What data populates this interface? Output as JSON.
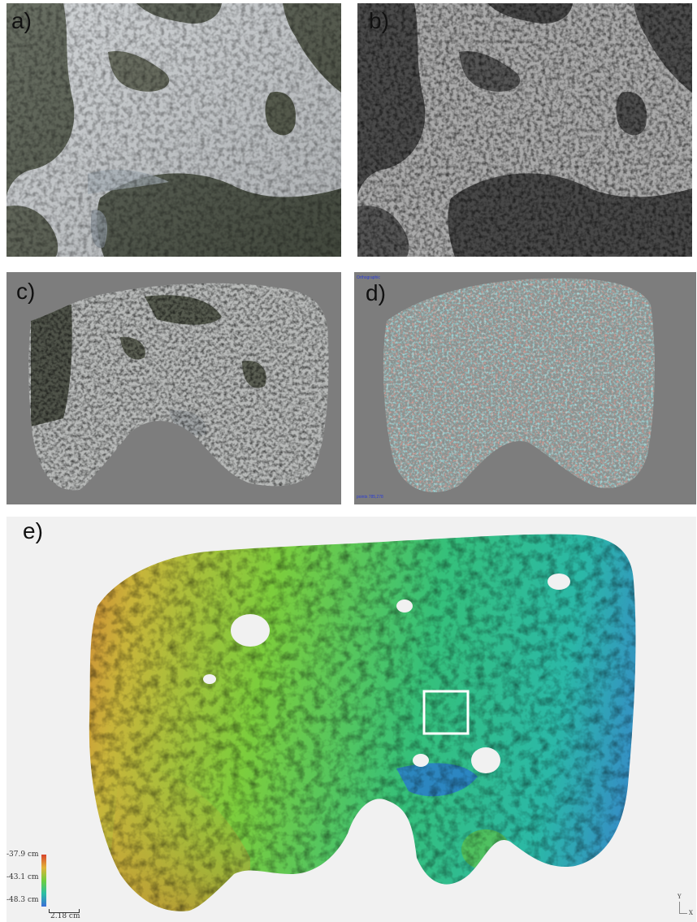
{
  "panels": {
    "a": {
      "label": "a)"
    },
    "b": {
      "label": "b)"
    },
    "c": {
      "label": "c)"
    },
    "d": {
      "label": "d)",
      "top_left_text": "Orthographic",
      "bottom_left_text": "points 785,278"
    },
    "e": {
      "label": "e)"
    }
  },
  "colorbar": {
    "top_label": "-37.9 cm",
    "mid_label": "-43.1 cm",
    "bottom_label": "-48.3 cm",
    "colors": [
      "#d8442c",
      "#e2b338",
      "#6fce3e",
      "#2bbfa4",
      "#3a6fd8"
    ]
  },
  "scalebar": {
    "label": "2.18 cm"
  },
  "axis_indicator": {
    "y": "Y",
    "x": "X"
  }
}
